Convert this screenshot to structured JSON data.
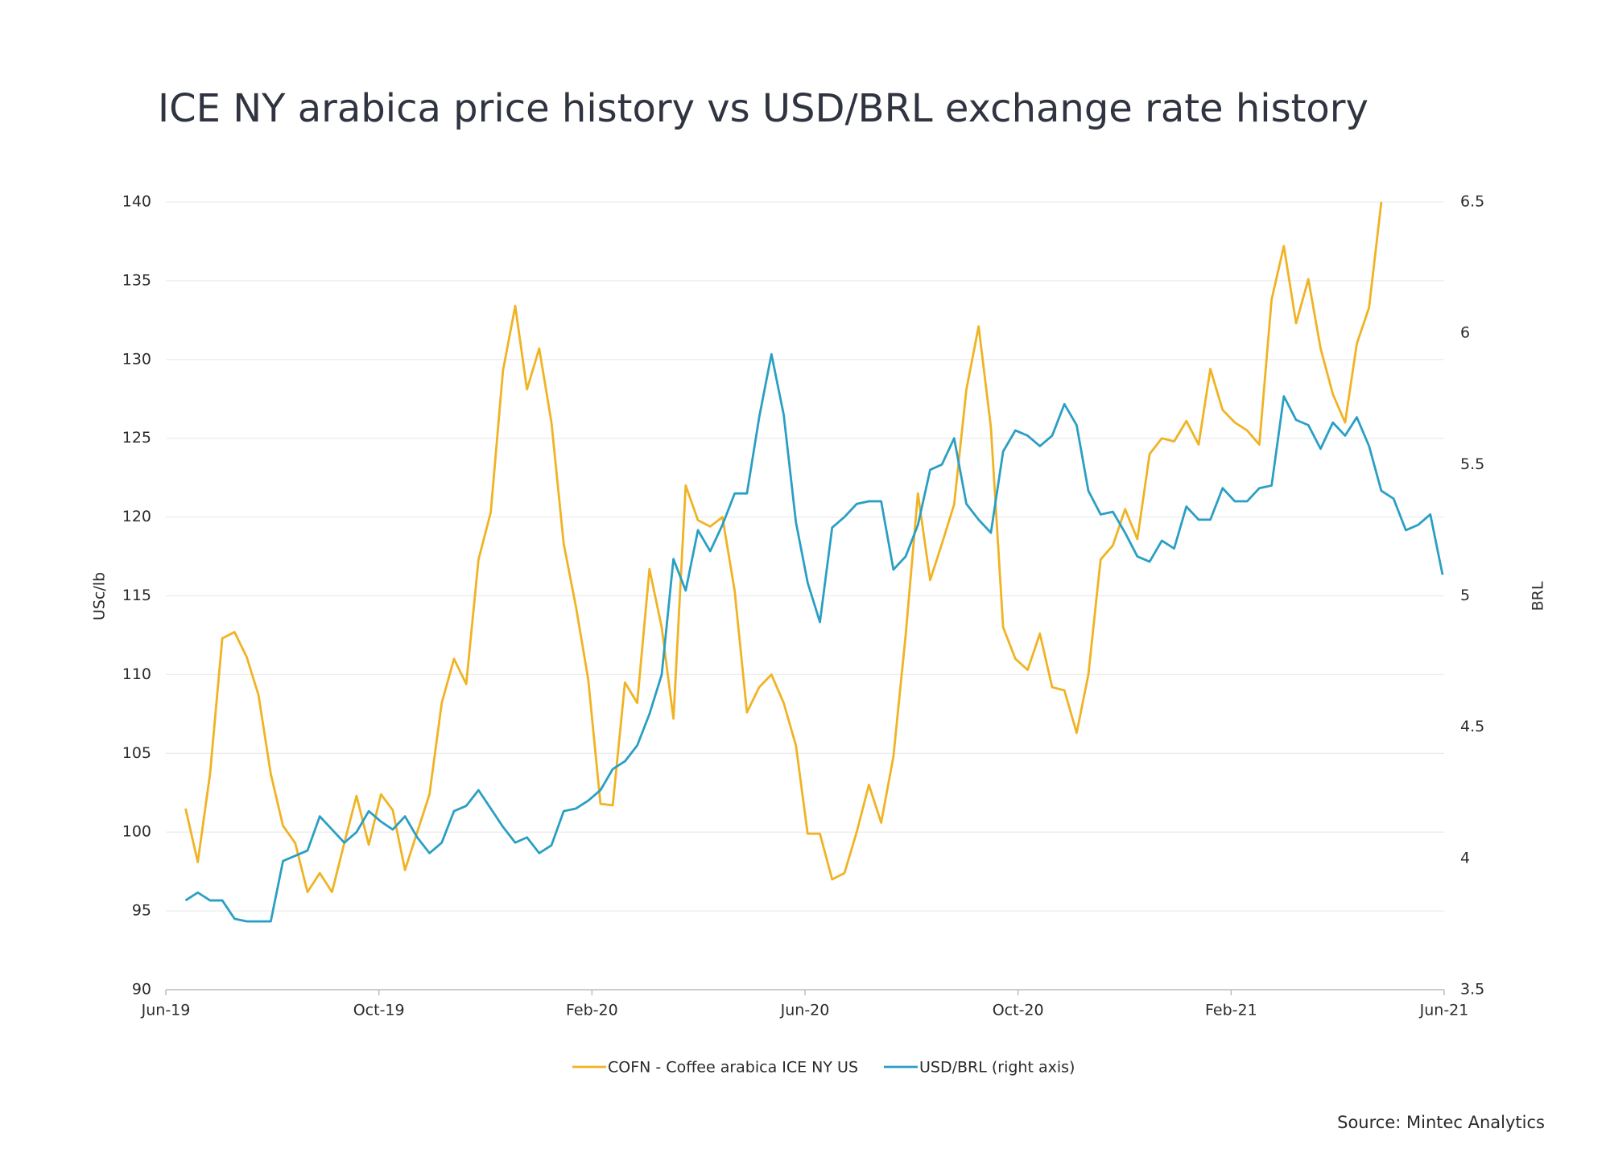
{
  "chart_data": {
    "type": "line",
    "title": "ICE NY arabica price history vs USD/BRL exchange rate history",
    "ylabel": "USc/lb",
    "y2label": "BRL",
    "source": "Source: Mintec Analytics",
    "x": [
      0.37,
      0.6,
      0.83,
      1.06,
      1.29,
      1.52,
      1.74,
      1.97,
      2.2,
      2.43,
      2.66,
      2.89,
      3.12,
      3.35,
      3.58,
      3.81,
      4.04,
      4.26,
      4.49,
      4.72,
      4.95,
      5.18,
      5.41,
      5.64,
      5.87,
      6.1,
      6.33,
      6.56,
      6.78,
      7.01,
      7.24,
      7.47,
      7.7,
      7.93,
      8.16,
      8.39,
      8.62,
      8.85,
      9.08,
      9.31,
      9.53,
      9.76,
      9.99,
      10.22,
      10.45,
      10.68,
      10.91,
      11.14,
      11.37,
      11.6,
      11.83,
      12.05,
      12.28,
      12.51,
      12.74,
      12.97,
      13.2,
      13.43,
      13.66,
      13.89,
      14.12,
      14.35,
      14.57,
      14.8,
      15.03,
      15.26,
      15.49,
      15.72,
      15.95,
      16.18,
      16.41,
      16.64,
      16.87,
      17.1,
      17.32,
      17.55,
      17.78,
      18.01,
      18.24,
      18.47,
      18.7,
      18.93,
      19.16,
      19.39,
      19.61,
      19.84,
      20.07,
      20.3,
      20.53,
      20.76,
      20.99,
      21.22,
      21.45,
      21.68,
      21.91,
      22.14,
      22.36,
      22.59,
      22.82,
      23.05,
      23.28,
      23.51,
      23.74,
      23.97
    ],
    "xlim": [
      0,
      24
    ],
    "xticks": [
      {
        "value": 0,
        "label": "Jun-19"
      },
      {
        "value": 4,
        "label": "Oct-19"
      },
      {
        "value": 8,
        "label": "Feb-20"
      },
      {
        "value": 12,
        "label": "Jun-20"
      },
      {
        "value": 16,
        "label": "Oct-20"
      },
      {
        "value": 20,
        "label": "Feb-21"
      },
      {
        "value": 24,
        "label": "Jun-21"
      }
    ],
    "ylim": [
      90,
      140
    ],
    "yticks": [
      90,
      95,
      100,
      105,
      110,
      115,
      120,
      125,
      130,
      135,
      140
    ],
    "y2lim": [
      3.5,
      6.5
    ],
    "y2ticks": [
      3.5,
      4,
      4.5,
      5,
      5.5,
      6,
      6.5
    ],
    "grid": true,
    "legend": "bottom",
    "series": [
      {
        "name": "COFN - Coffee arabica ICE NY US",
        "color": "#f0b323",
        "values": [
          101.5,
          98.1,
          103.7,
          112.3,
          112.7,
          111.1,
          108.7,
          103.7,
          100.4,
          99.3,
          96.2,
          97.4,
          96.2,
          99.3,
          102.3,
          99.2,
          102.4,
          101.4,
          97.6,
          100.0,
          102.4,
          108.2,
          111.0,
          109.4,
          117.3,
          120.3,
          129.3,
          133.4,
          128.1,
          130.7,
          126.0,
          118.3,
          114.3,
          109.7,
          101.8,
          101.7,
          109.5,
          108.2,
          116.7,
          113.0,
          107.2,
          122.0,
          119.8,
          119.4,
          120.0,
          115.3,
          107.6,
          109.2,
          110.0,
          108.2,
          105.5,
          99.9,
          99.9,
          97.0,
          97.4,
          100.0,
          103.0,
          100.6,
          104.8,
          112.5,
          121.5,
          116.0,
          118.3,
          120.8,
          128.1,
          132.1,
          125.7,
          113.0,
          111.0,
          110.3,
          112.6,
          109.2,
          109.0,
          106.3,
          110.0,
          117.3,
          118.2,
          120.5,
          118.6,
          124.0,
          125.0,
          124.8,
          126.1,
          124.6,
          129.4,
          126.8,
          126.0,
          125.5,
          124.6,
          133.8,
          137.2,
          132.3,
          135.1,
          130.7,
          127.8,
          126.0,
          131.0,
          133.3,
          140.0,
          null,
          null,
          null,
          null,
          null
        ]
      },
      {
        "name": "USD/BRL (right axis)",
        "color": "#2a9fc4",
        "axis": "y2",
        "values": [
          3.84,
          3.87,
          3.84,
          3.84,
          3.77,
          3.76,
          3.76,
          3.76,
          3.99,
          4.01,
          4.03,
          4.16,
          4.11,
          4.06,
          4.1,
          4.18,
          4.14,
          4.11,
          4.16,
          4.08,
          4.02,
          4.06,
          4.18,
          4.2,
          4.26,
          4.19,
          4.12,
          4.06,
          4.08,
          4.02,
          4.05,
          4.18,
          4.19,
          4.22,
          4.26,
          4.34,
          4.37,
          4.43,
          4.55,
          4.7,
          5.14,
          5.02,
          5.25,
          5.17,
          5.27,
          5.39,
          5.39,
          5.68,
          5.92,
          5.69,
          5.28,
          5.05,
          4.9,
          5.26,
          5.3,
          5.35,
          5.36,
          5.36,
          5.1,
          5.15,
          5.27,
          5.48,
          5.5,
          5.6,
          5.35,
          5.29,
          5.24,
          5.55,
          5.63,
          5.61,
          5.57,
          5.61,
          5.73,
          5.65,
          5.4,
          5.31,
          5.32,
          5.24,
          5.15,
          5.13,
          5.21,
          5.18,
          5.34,
          5.29,
          5.29,
          5.41,
          5.36,
          5.36,
          5.41,
          5.42,
          5.76,
          5.67,
          5.65,
          5.56,
          5.66,
          5.61,
          5.68,
          5.57,
          5.4,
          5.37,
          5.25,
          5.27,
          5.31,
          5.08
        ]
      }
    ]
  }
}
